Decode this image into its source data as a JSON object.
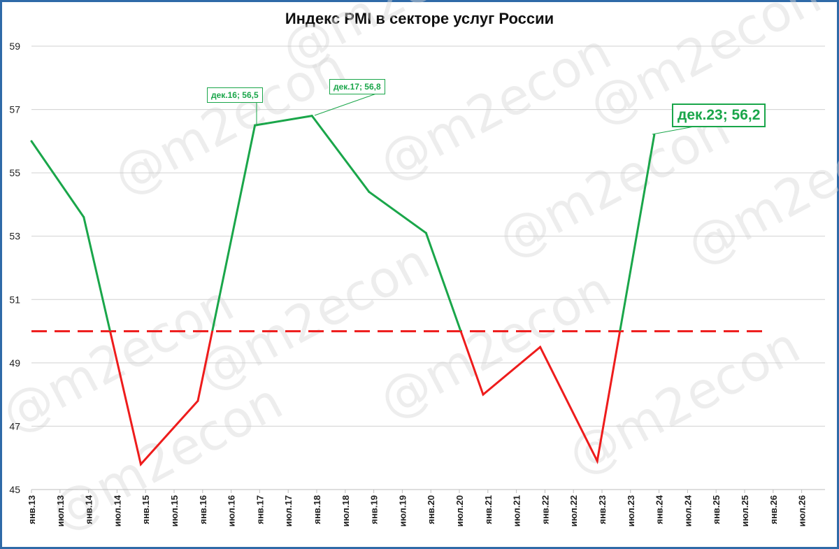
{
  "chart_data": {
    "type": "line",
    "title": "Индекс PMI в секторе услуг России",
    "ylim": [
      45,
      59
    ],
    "yticks": [
      "45",
      "47",
      "49",
      "51",
      "53",
      "55",
      "57",
      "59"
    ],
    "x_tick_labels": [
      "янв.13",
      "июл.13",
      "янв.14",
      "июл.14",
      "янв.15",
      "июл.15",
      "янв.16",
      "июл.16",
      "янв.17",
      "июл.17",
      "янв.18",
      "июл.18",
      "янв.19",
      "июл.19",
      "янв.20",
      "июл.20",
      "янв.21",
      "июл.21",
      "янв.22",
      "июл.22",
      "янв.23",
      "июл.23",
      "янв.24",
      "июл.24",
      "янв.25",
      "июл.25",
      "янв.26",
      "июл.26"
    ],
    "series": [
      {
        "x": [
          "янв.13",
          "дек.13",
          "дек.14",
          "дек.15",
          "дек.16",
          "дек.17",
          "дек.18",
          "дек.19",
          "дек.20",
          "дек.21",
          "дек.22",
          "дек.23"
        ],
        "values": [
          56.0,
          53.6,
          45.8,
          47.8,
          56.5,
          56.8,
          54.4,
          53.1,
          48.0,
          49.5,
          45.9,
          56.2
        ]
      }
    ],
    "threshold": 50,
    "colors": {
      "above": "#1aa64a",
      "below": "#ee1c1c",
      "threshold": "#ee1c1c",
      "grid": "#d0d0d0"
    },
    "annotations": [
      {
        "x": "дек.16",
        "text": "дек.16; 56,5"
      },
      {
        "x": "дек.17",
        "text": "дек.17; 56,8"
      },
      {
        "x": "дек.23",
        "text": "дек.23; 56,2"
      }
    ],
    "watermark": "@m2econ",
    "grid": true
  }
}
